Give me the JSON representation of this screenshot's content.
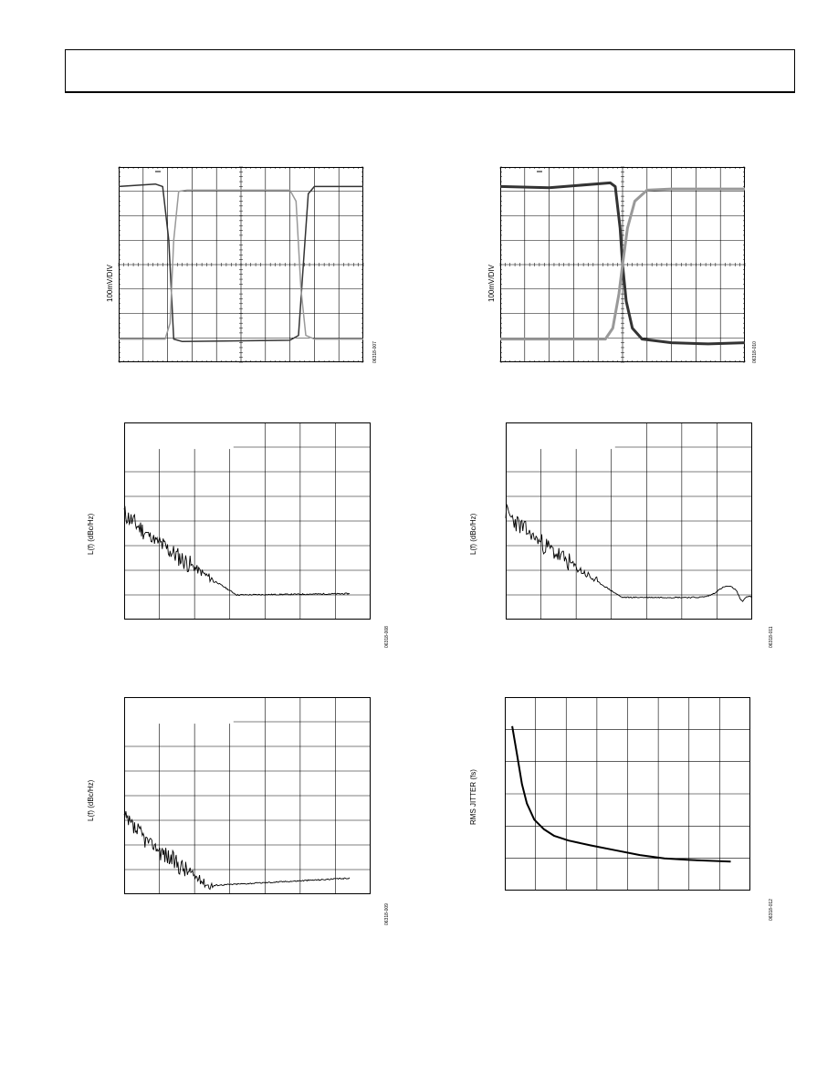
{
  "page": {
    "header_text": ""
  },
  "charts": [
    {
      "id": "fig1",
      "type": "line",
      "ylabel": "100mV/DIV",
      "figure_number": "06318-007",
      "grid": true,
      "series": [
        {
          "color": "#333333",
          "width": 1.5,
          "points": [
            [
              0,
              3.2
            ],
            [
              1.5,
              3.3
            ],
            [
              1.8,
              3.2
            ],
            [
              2.05,
              1
            ],
            [
              2.25,
              -3.05
            ],
            [
              2.6,
              -3.15
            ],
            [
              7,
              -3.1
            ],
            [
              7.35,
              -2.9
            ],
            [
              7.55,
              0
            ],
            [
              7.75,
              2.9
            ],
            [
              8,
              3.2
            ],
            [
              10,
              3.2
            ]
          ]
        },
        {
          "color": "#999999",
          "width": 1.5,
          "points": [
            [
              0,
              -3.05
            ],
            [
              1.9,
              -3.05
            ],
            [
              2.1,
              -2.4
            ],
            [
              2.25,
              1
            ],
            [
              2.45,
              3.0
            ],
            [
              2.8,
              3.05
            ],
            [
              7,
              3.05
            ],
            [
              7.25,
              2.6
            ],
            [
              7.45,
              -1
            ],
            [
              7.65,
              -2.9
            ],
            [
              8,
              -3.05
            ],
            [
              10,
              -3.05
            ]
          ]
        }
      ]
    },
    {
      "id": "fig2",
      "type": "line",
      "ylabel": "100mV/DIV",
      "figure_number": "06318-010",
      "grid": true,
      "series": [
        {
          "color": "#333333",
          "width": 3,
          "points": [
            [
              0,
              3.2
            ],
            [
              2,
              3.15
            ],
            [
              4.5,
              3.35
            ],
            [
              4.7,
              3.2
            ],
            [
              4.9,
              1.5
            ],
            [
              5.0,
              0
            ],
            [
              5.15,
              -1.5
            ],
            [
              5.4,
              -2.6
            ],
            [
              5.8,
              -3.05
            ],
            [
              7,
              -3.2
            ],
            [
              8.5,
              -3.25
            ],
            [
              10,
              -3.2
            ]
          ]
        },
        {
          "color": "#999999",
          "width": 3,
          "points": [
            [
              0,
              -3.05
            ],
            [
              4.3,
              -3.05
            ],
            [
              4.6,
              -2.6
            ],
            [
              4.85,
              -1.2
            ],
            [
              5.0,
              0
            ],
            [
              5.2,
              1.5
            ],
            [
              5.5,
              2.6
            ],
            [
              6,
              3.05
            ],
            [
              7,
              3.1
            ],
            [
              10,
              3.1
            ]
          ]
        }
      ]
    },
    {
      "id": "fig3",
      "type": "line",
      "ylabel": "L(f) (dBc/Hz)",
      "figure_number": "06318-008",
      "grid": true,
      "legend_box": true,
      "noise": {
        "seed": 11,
        "start": [
          0,
          4.35
        ],
        "end_y": 1.0,
        "flat_from": 3.2,
        "tail_rise": 0.05
      }
    },
    {
      "id": "fig4",
      "type": "line",
      "ylabel": "L(f) (dBc/Hz)",
      "figure_number": "06318-011",
      "grid": true,
      "legend_box": true,
      "noise": {
        "seed": 23,
        "start": [
          0,
          4.4
        ],
        "end_y": 0.9,
        "flat_from": 3.3,
        "tail_bump": true
      }
    },
    {
      "id": "fig5",
      "type": "line",
      "ylabel": "L(f) (dBc/Hz)",
      "figure_number": "06318-009",
      "grid": true,
      "legend_box": true,
      "noise": {
        "seed": 37,
        "start": [
          0,
          3.1
        ],
        "end_y": 0.35,
        "flat_from": 2.4,
        "tail_rise": 0.3
      }
    },
    {
      "id": "fig6",
      "type": "line",
      "ylabel": "RMS JITTER (fs)",
      "figure_number": "06318-012",
      "grid": true,
      "series": [
        {
          "color": "#000000",
          "width": 2,
          "points": [
            [
              0.3,
              5.1
            ],
            [
              0.5,
              4.2
            ],
            [
              0.7,
              3.3
            ],
            [
              0.9,
              2.7
            ],
            [
              1.2,
              2.2
            ],
            [
              1.6,
              1.9
            ],
            [
              2,
              1.7
            ],
            [
              2.6,
              1.55
            ],
            [
              3.5,
              1.4
            ],
            [
              4.5,
              1.25
            ],
            [
              5.5,
              1.1
            ],
            [
              6.5,
              1.0
            ],
            [
              7.5,
              0.95
            ],
            [
              8.5,
              0.92
            ],
            [
              9.2,
              0.9
            ]
          ]
        }
      ]
    }
  ]
}
